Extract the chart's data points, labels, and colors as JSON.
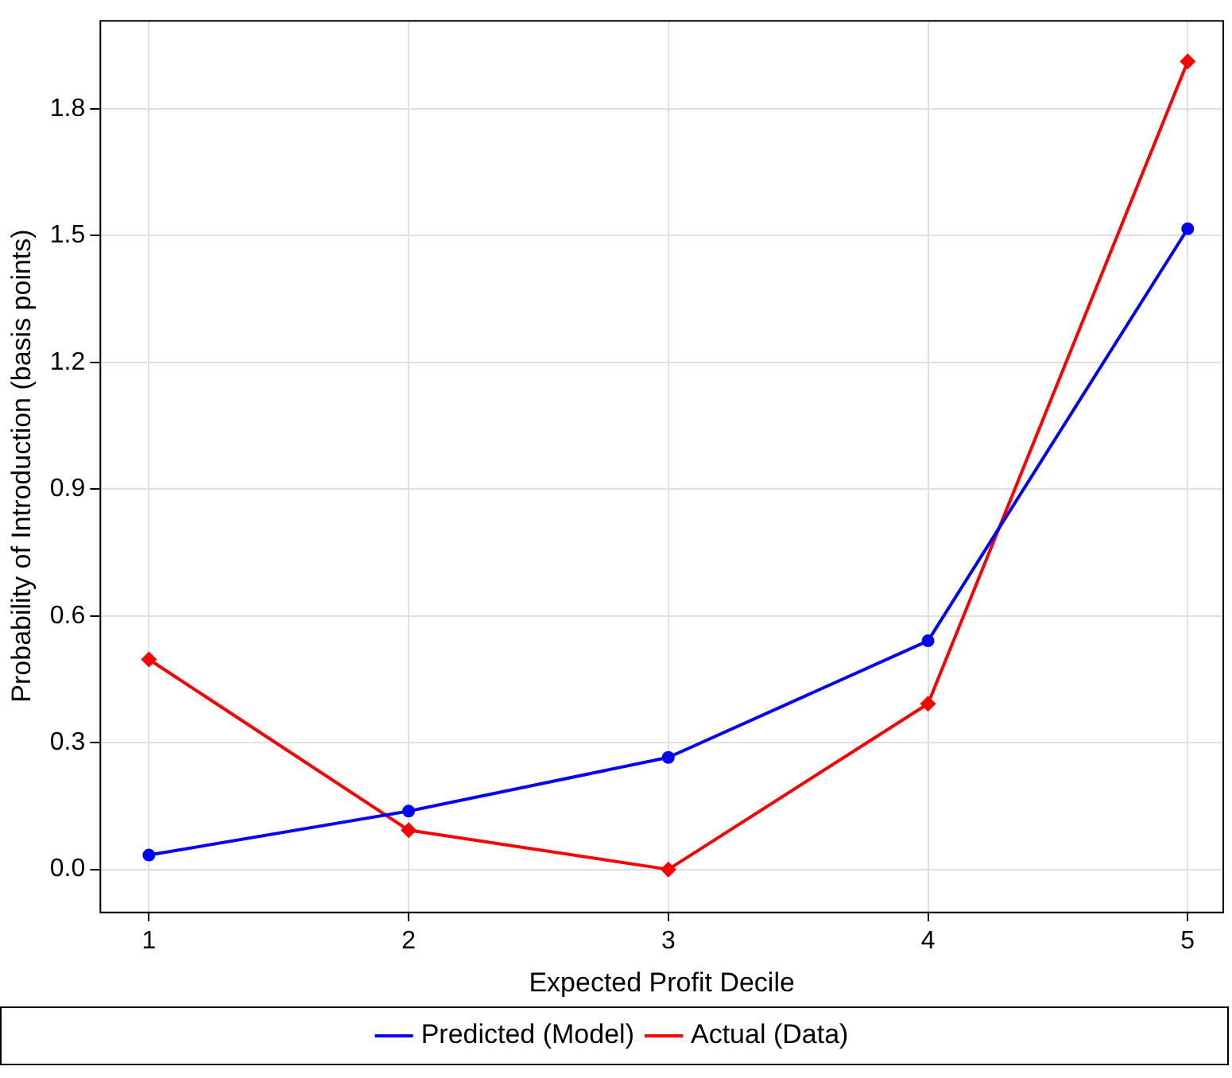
{
  "chart_data": {
    "type": "line",
    "xlabel": "Expected Profit Decile",
    "ylabel": "Probability of Introduction (basis points)",
    "x": [
      1,
      2,
      3,
      4,
      5
    ],
    "series": [
      {
        "name": "Predicted (Model)",
        "color": "#0000ff",
        "marker": "circle",
        "values": [
          0.034,
          0.138,
          0.265,
          0.541,
          1.516
        ]
      },
      {
        "name": "Actual (Data)",
        "color": "#ff0000",
        "marker": "diamond",
        "values": [
          0.497,
          0.093,
          0.0,
          0.392,
          1.912
        ]
      }
    ],
    "xlim": [
      0.81,
      5.14
    ],
    "xticks": [
      1,
      2,
      3,
      4,
      5
    ],
    "ylim": [
      -0.1,
      2.01
    ],
    "yticks": [
      {
        "value": 0,
        "label": "0.0"
      },
      {
        "value": 0.3,
        "label": "0.3"
      },
      {
        "value": 0.6,
        "label": "0.6"
      },
      {
        "value": 0.9,
        "label": "0.9"
      },
      {
        "value": 1.2,
        "label": "1.2"
      },
      {
        "value": 1.5,
        "label": "1.5"
      },
      {
        "value": 1.8,
        "label": "1.8"
      }
    ],
    "grid": true,
    "legend": "bottom"
  }
}
